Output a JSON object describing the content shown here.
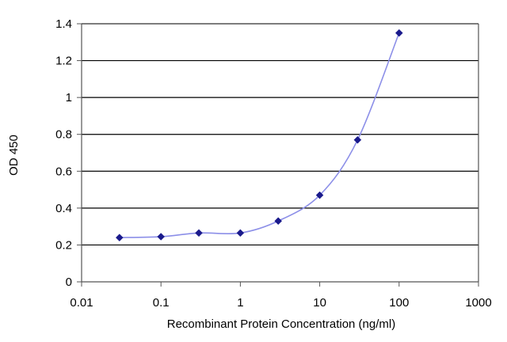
{
  "chart_data": {
    "type": "scatter",
    "xlabel": "Recombinant Protein Concentration (ng/ml)",
    "ylabel": "OD 450",
    "x_scale": "log",
    "xlim": [
      0.01,
      1000
    ],
    "ylim": [
      0,
      1.4
    ],
    "x_ticks": [
      "0.01",
      "0.1",
      "1",
      "10",
      "100",
      "1000"
    ],
    "y_ticks": [
      "0",
      "0.2",
      "0.4",
      "0.6",
      "0.8",
      "1",
      "1.2",
      "1.4"
    ],
    "grid": "horizontal",
    "series": [
      {
        "x": [
          0.03,
          0.1,
          0.3,
          1,
          3,
          10,
          30,
          100
        ],
        "y": [
          0.24,
          0.245,
          0.265,
          0.265,
          0.33,
          0.47,
          0.77,
          1.35
        ],
        "marker": "diamond",
        "line": "smoothed"
      }
    ]
  },
  "colors": {
    "line": "#8c8fe8",
    "marker": "#1a1a8c",
    "grid": "#000000",
    "axis": "#555555"
  }
}
